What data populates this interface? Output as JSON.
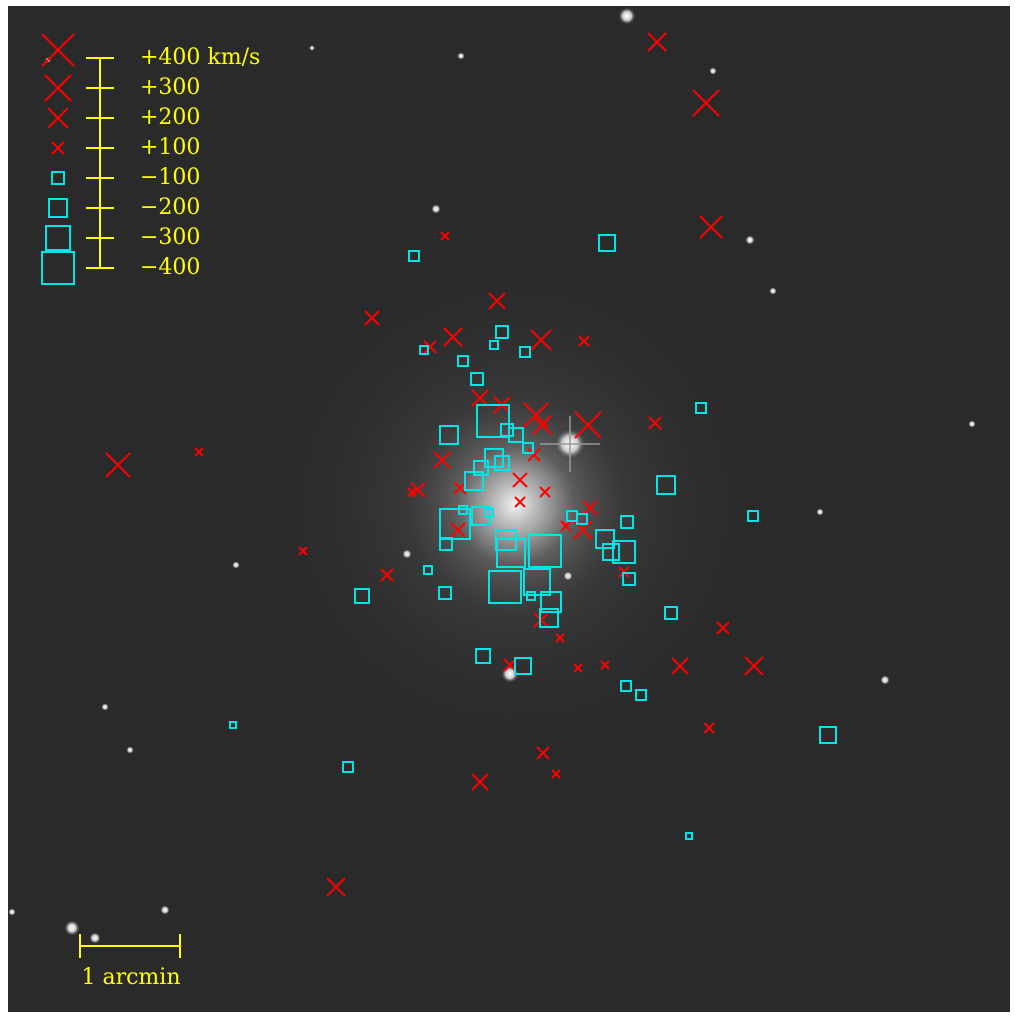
{
  "legend": {
    "labels": [
      "+400 km/s",
      "+300",
      "+200",
      "+100",
      "−100",
      "−200",
      "−300",
      "−400"
    ]
  },
  "scale_bar": {
    "label": "1 arcmin"
  }
}
